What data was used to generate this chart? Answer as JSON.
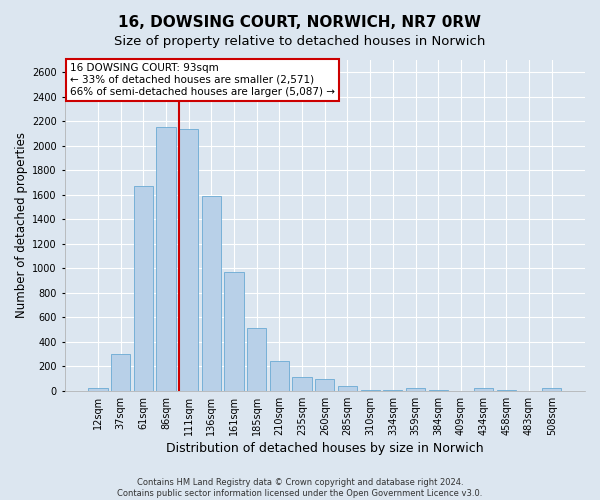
{
  "title": "16, DOWSING COURT, NORWICH, NR7 0RW",
  "subtitle": "Size of property relative to detached houses in Norwich",
  "xlabel": "Distribution of detached houses by size in Norwich",
  "ylabel": "Number of detached properties",
  "footer_line1": "Contains HM Land Registry data © Crown copyright and database right 2024.",
  "footer_line2": "Contains public sector information licensed under the Open Government Licence v3.0.",
  "categories": [
    "12sqm",
    "37sqm",
    "61sqm",
    "86sqm",
    "111sqm",
    "136sqm",
    "161sqm",
    "185sqm",
    "210sqm",
    "235sqm",
    "260sqm",
    "285sqm",
    "310sqm",
    "334sqm",
    "359sqm",
    "384sqm",
    "409sqm",
    "434sqm",
    "458sqm",
    "483sqm",
    "508sqm"
  ],
  "values": [
    20,
    300,
    1670,
    2150,
    2140,
    1590,
    970,
    510,
    245,
    115,
    95,
    40,
    5,
    5,
    20,
    5,
    0,
    20,
    5,
    0,
    20
  ],
  "bar_color": "#b8d0e8",
  "bar_edge_color": "#6aaad4",
  "property_line_x": 3.58,
  "property_sqm": 93,
  "property_label": "16 DOWSING COURT: 93sqm",
  "annotation_line1": "← 33% of detached houses are smaller (2,571)",
  "annotation_line2": "66% of semi-detached houses are larger (5,087) →",
  "annotation_box_facecolor": "#ffffff",
  "annotation_box_edgecolor": "#cc0000",
  "vline_color": "#cc0000",
  "ylim": [
    0,
    2700
  ],
  "yticks": [
    0,
    200,
    400,
    600,
    800,
    1000,
    1200,
    1400,
    1600,
    1800,
    2000,
    2200,
    2400,
    2600
  ],
  "background_color": "#dce6f0",
  "grid_color": "#ffffff",
  "title_fontsize": 11,
  "subtitle_fontsize": 9.5,
  "xlabel_fontsize": 9,
  "ylabel_fontsize": 8.5,
  "tick_fontsize": 7,
  "footer_fontsize": 6,
  "annotation_fontsize": 7.5
}
